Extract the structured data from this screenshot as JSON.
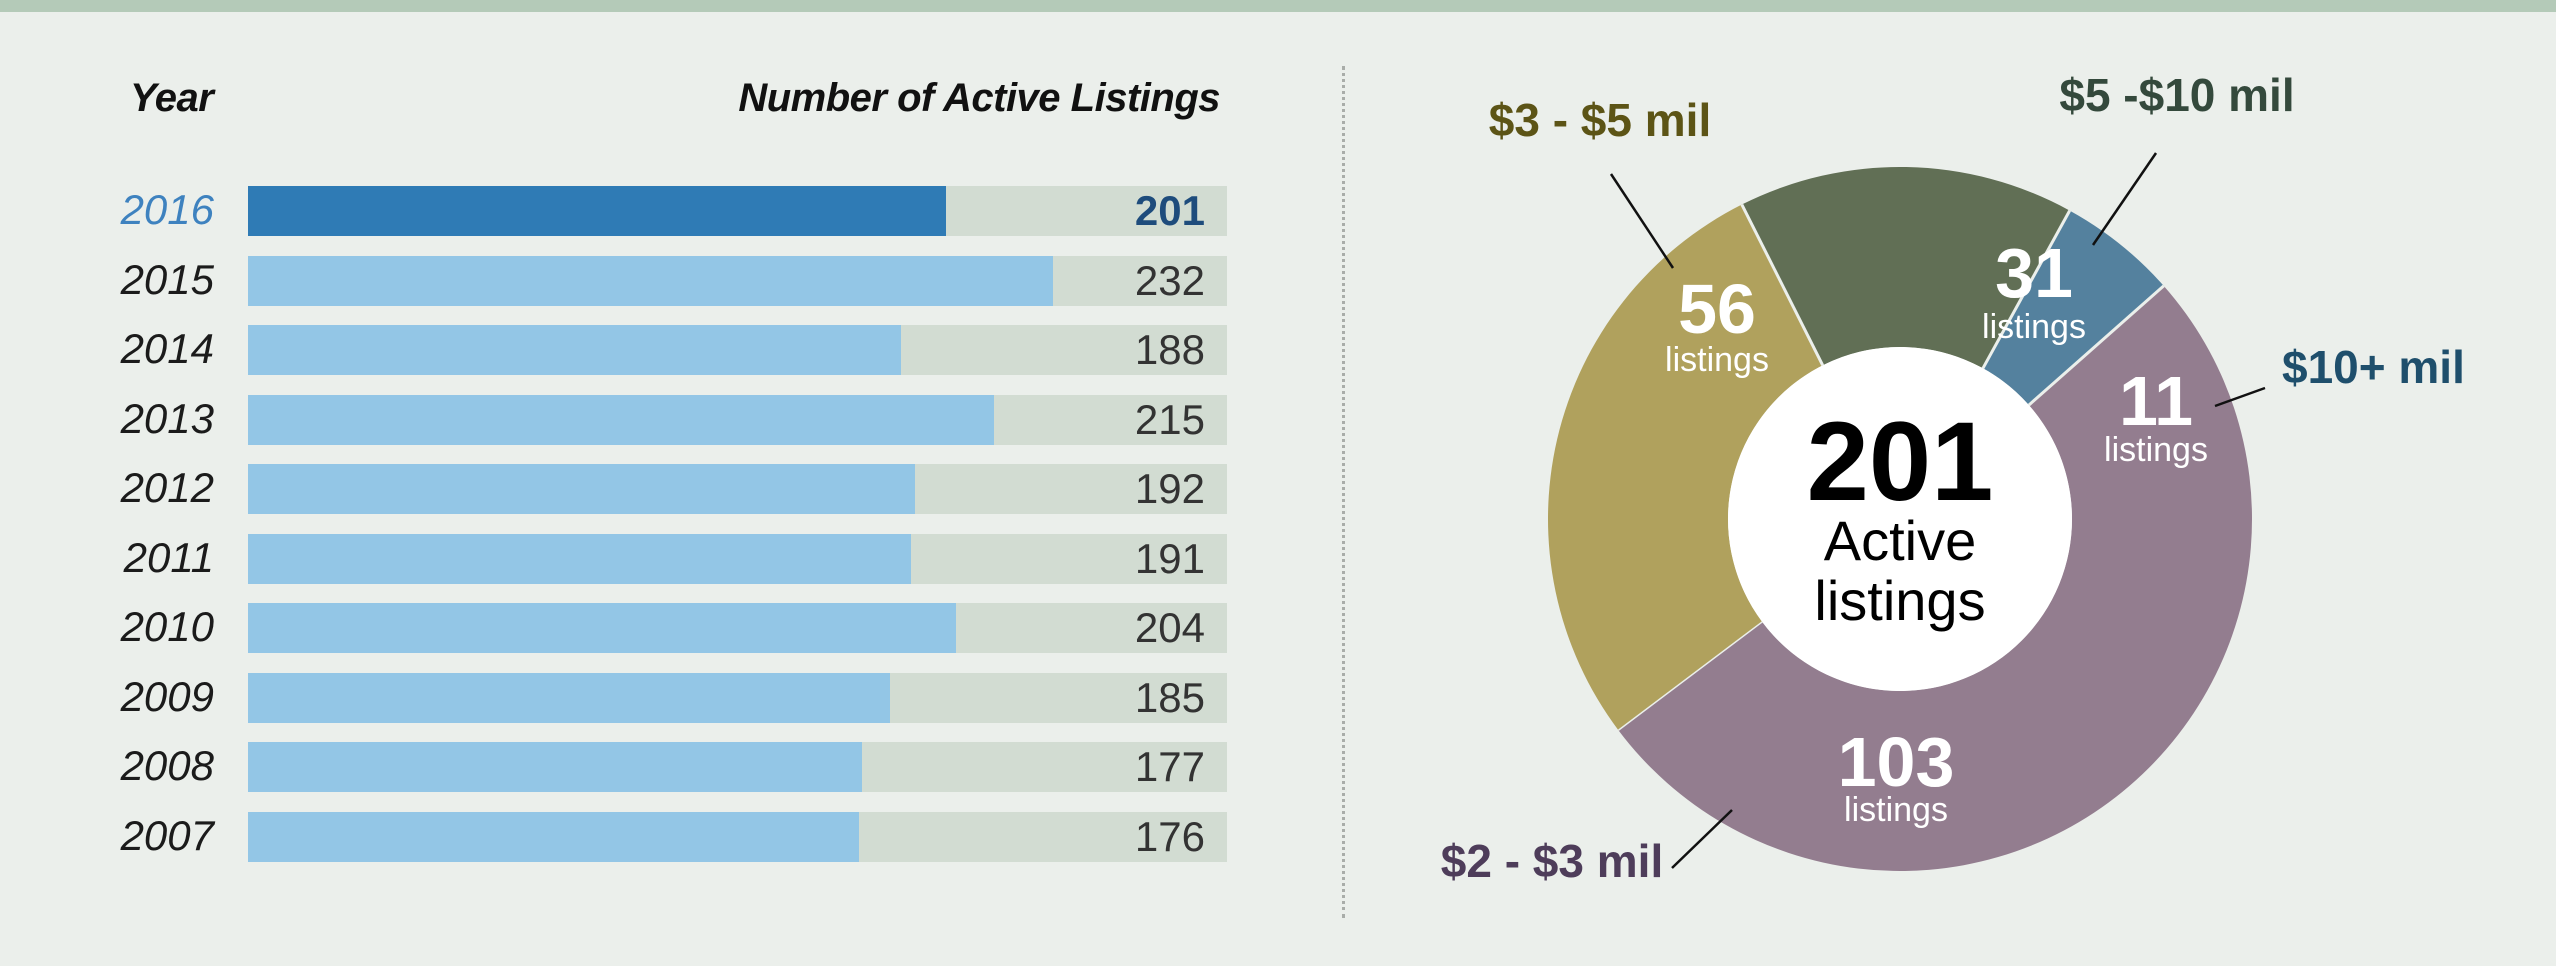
{
  "bar_section": {
    "year_header": "Year",
    "value_header": "Number of Active Listings"
  },
  "donut_section": {
    "total": "201",
    "center_line1": "Active",
    "center_line2": "listings",
    "slice_unit": "listings"
  },
  "colors": {
    "highlight_bar": "#2f7bb5",
    "bar": "#93c6e6",
    "track": "#d2dcd2",
    "slice_3_5": "#b0a15d",
    "slice_5_10": "#616f55",
    "slice_10plus": "#54819e",
    "slice_2_3": "#937d8f"
  },
  "chart_data": [
    {
      "type": "bar",
      "orientation": "horizontal",
      "categories": [
        "2016",
        "2015",
        "2014",
        "2013",
        "2012",
        "2011",
        "2010",
        "2009",
        "2008",
        "2007"
      ],
      "values": [
        201,
        232,
        188,
        215,
        192,
        191,
        204,
        185,
        177,
        176
      ],
      "highlighted_category": "2016",
      "xlim": [
        0,
        282
      ],
      "xlabel": "Number of Active Listings",
      "ylabel": "Year"
    },
    {
      "type": "pie",
      "style": "donut",
      "total": 201,
      "slices": [
        {
          "label": "$3 - $5 mil",
          "value": 56,
          "color": "#b0a15d",
          "label_color": "#5c5416"
        },
        {
          "label": "$5 -$10 mil",
          "value": 31,
          "color": "#616f55",
          "label_color": "#34493c"
        },
        {
          "label": "$10+ mil",
          "value": 11,
          "color": "#54819e",
          "label_color": "#1f4f6c"
        },
        {
          "label": "$2 - $3 mil",
          "value": 103,
          "color": "#937d8f",
          "label_color": "#4e3d5a"
        }
      ]
    }
  ]
}
